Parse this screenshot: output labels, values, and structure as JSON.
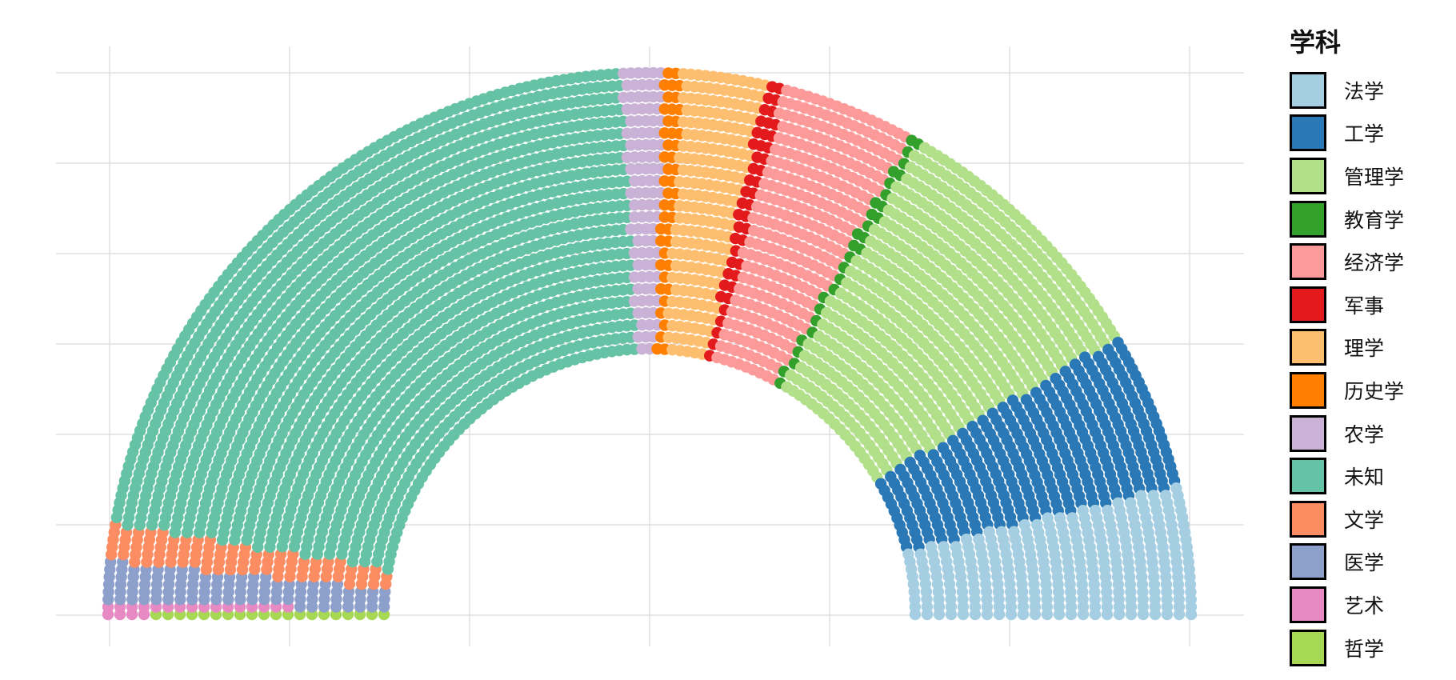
{
  "chart_data": {
    "type": "parliament",
    "title": "",
    "legend": {
      "title": "学科",
      "position": "right",
      "entries": [
        {
          "name": "法学",
          "color": "#a6cee3"
        },
        {
          "name": "工学",
          "color": "#2a78b5"
        },
        {
          "name": "管理学",
          "color": "#b2df8a"
        },
        {
          "name": "教育学",
          "color": "#33a02c"
        },
        {
          "name": "经济学",
          "color": "#fb9a99"
        },
        {
          "name": "军事",
          "color": "#e31a1c"
        },
        {
          "name": "理学",
          "color": "#fdbf6f"
        },
        {
          "name": "历史学",
          "color": "#ff7f00"
        },
        {
          "name": "农学",
          "color": "#cab2d6"
        },
        {
          "name": "未知",
          "color": "#66c2a5"
        },
        {
          "name": "文学",
          "color": "#fc8d62"
        },
        {
          "name": "医学",
          "color": "#8da0cb"
        },
        {
          "name": "艺术",
          "color": "#e78ac3"
        },
        {
          "name": "哲学",
          "color": "#a6d854"
        }
      ]
    },
    "grid": true,
    "rows": 24,
    "seat_order": "left-to-right",
    "series": [
      {
        "name": "哲学",
        "value": 20
      },
      {
        "name": "艺术",
        "value": 20
      },
      {
        "name": "医学",
        "value": 100
      },
      {
        "name": "文学",
        "value": 90
      },
      {
        "name": "未知",
        "value": 1740
      },
      {
        "name": "农学",
        "value": 100
      },
      {
        "name": "历史学",
        "value": 45
      },
      {
        "name": "理学",
        "value": 200
      },
      {
        "name": "军事",
        "value": 45
      },
      {
        "name": "经济学",
        "value": 320
      },
      {
        "name": "教育学",
        "value": 30
      },
      {
        "name": "管理学",
        "value": 660
      },
      {
        "name": "工学",
        "value": 380
      },
      {
        "name": "法学",
        "value": 320
      }
    ]
  }
}
